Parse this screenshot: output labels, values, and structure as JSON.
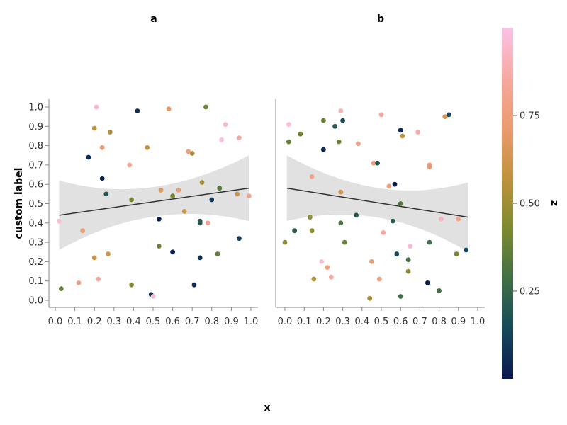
{
  "chart_data": {
    "type": "scatter",
    "xlabel": "x",
    "ylabel": "custom label",
    "colorbar_label": "z",
    "xlim": [
      0,
      1
    ],
    "ylim": [
      0,
      1
    ],
    "x_ticks": [
      "0.0",
      "0.1",
      "0.2",
      "0.3",
      "0.4",
      "0.5",
      "0.6",
      "0.7",
      "0.8",
      "0.9",
      "1.0"
    ],
    "y_ticks": [
      "0.0",
      "0.1",
      "0.2",
      "0.3",
      "0.4",
      "0.5",
      "0.6",
      "0.7",
      "0.8",
      "0.9",
      "1.0"
    ],
    "colorbar_ticks": [
      "0.25",
      "0.50",
      "0.75"
    ],
    "colorbar_range": [
      0,
      1
    ],
    "colormap": [
      "#0a1850",
      "#154a5a",
      "#3f7044",
      "#7d8a2e",
      "#c0923c",
      "#ec9a6e",
      "#f7a8a0",
      "#fbc2e6"
    ],
    "facets": [
      {
        "title": "a",
        "trend": {
          "x": [
            0.02,
            0.99
          ],
          "y": [
            0.44,
            0.58
          ],
          "band_lower": [
            0.26,
            0.41
          ],
          "band_upper": [
            0.62,
            0.75
          ]
        },
        "points": [
          {
            "x": 0.02,
            "y": 0.41,
            "z": 0.97
          },
          {
            "x": 0.03,
            "y": 0.06,
            "z": 0.38
          },
          {
            "x": 0.12,
            "y": 0.09,
            "z": 0.78
          },
          {
            "x": 0.14,
            "y": 0.36,
            "z": 0.74
          },
          {
            "x": 0.17,
            "y": 0.74,
            "z": 0.05
          },
          {
            "x": 0.2,
            "y": 0.22,
            "z": 0.62
          },
          {
            "x": 0.2,
            "y": 0.89,
            "z": 0.56
          },
          {
            "x": 0.21,
            "y": 1.0,
            "z": 0.93
          },
          {
            "x": 0.22,
            "y": 0.11,
            "z": 0.85
          },
          {
            "x": 0.24,
            "y": 0.79,
            "z": 0.72
          },
          {
            "x": 0.24,
            "y": 0.63,
            "z": 0.03
          },
          {
            "x": 0.26,
            "y": 0.55,
            "z": 0.18
          },
          {
            "x": 0.27,
            "y": 0.24,
            "z": 0.62
          },
          {
            "x": 0.28,
            "y": 0.87,
            "z": 0.54
          },
          {
            "x": 0.38,
            "y": 0.7,
            "z": 0.82
          },
          {
            "x": 0.39,
            "y": 0.52,
            "z": 0.4
          },
          {
            "x": 0.39,
            "y": 0.08,
            "z": 0.45
          },
          {
            "x": 0.42,
            "y": 0.98,
            "z": 0.06
          },
          {
            "x": 0.47,
            "y": 0.79,
            "z": 0.6
          },
          {
            "x": 0.49,
            "y": 0.03,
            "z": 0.05
          },
          {
            "x": 0.5,
            "y": 0.02,
            "z": 0.95
          },
          {
            "x": 0.53,
            "y": 0.28,
            "z": 0.4
          },
          {
            "x": 0.53,
            "y": 0.42,
            "z": 0.03
          },
          {
            "x": 0.54,
            "y": 0.57,
            "z": 0.65
          },
          {
            "x": 0.58,
            "y": 0.99,
            "z": 0.7
          },
          {
            "x": 0.6,
            "y": 0.54,
            "z": 0.42
          },
          {
            "x": 0.6,
            "y": 0.25,
            "z": 0.03
          },
          {
            "x": 0.63,
            "y": 0.57,
            "z": 0.72
          },
          {
            "x": 0.66,
            "y": 0.46,
            "z": 0.62
          },
          {
            "x": 0.68,
            "y": 0.77,
            "z": 0.78
          },
          {
            "x": 0.7,
            "y": 0.76,
            "z": 0.52
          },
          {
            "x": 0.71,
            "y": 0.08,
            "z": 0.04
          },
          {
            "x": 0.74,
            "y": 0.41,
            "z": 0.22
          },
          {
            "x": 0.74,
            "y": 0.4,
            "z": 0.18
          },
          {
            "x": 0.74,
            "y": 0.22,
            "z": 0.07
          },
          {
            "x": 0.75,
            "y": 0.61,
            "z": 0.52
          },
          {
            "x": 0.77,
            "y": 1.0,
            "z": 0.38
          },
          {
            "x": 0.78,
            "y": 0.4,
            "z": 0.8
          },
          {
            "x": 0.8,
            "y": 0.52,
            "z": 0.1
          },
          {
            "x": 0.83,
            "y": 0.24,
            "z": 0.35
          },
          {
            "x": 0.84,
            "y": 0.58,
            "z": 0.34
          },
          {
            "x": 0.85,
            "y": 0.83,
            "z": 0.99
          },
          {
            "x": 0.87,
            "y": 0.91,
            "z": 0.94
          },
          {
            "x": 0.93,
            "y": 0.55,
            "z": 0.62
          },
          {
            "x": 0.94,
            "y": 0.32,
            "z": 0.1
          },
          {
            "x": 0.94,
            "y": 0.84,
            "z": 0.87
          },
          {
            "x": 0.99,
            "y": 0.54,
            "z": 0.8
          }
        ]
      },
      {
        "title": "b",
        "trend": {
          "x": [
            0.01,
            0.95
          ],
          "y": [
            0.58,
            0.43
          ],
          "band_lower": [
            0.41,
            0.25
          ],
          "band_upper": [
            0.75,
            0.61
          ]
        },
        "points": [
          {
            "x": 0.0,
            "y": 0.3,
            "z": 0.48
          },
          {
            "x": 0.02,
            "y": 0.91,
            "z": 0.98
          },
          {
            "x": 0.02,
            "y": 0.82,
            "z": 0.38
          },
          {
            "x": 0.05,
            "y": 0.36,
            "z": 0.22
          },
          {
            "x": 0.08,
            "y": 0.86,
            "z": 0.4
          },
          {
            "x": 0.13,
            "y": 0.43,
            "z": 0.45
          },
          {
            "x": 0.14,
            "y": 0.64,
            "z": 0.82
          },
          {
            "x": 0.14,
            "y": 0.36,
            "z": 0.48
          },
          {
            "x": 0.15,
            "y": 0.11,
            "z": 0.55
          },
          {
            "x": 0.19,
            "y": 0.2,
            "z": 0.97
          },
          {
            "x": 0.2,
            "y": 0.93,
            "z": 0.38
          },
          {
            "x": 0.2,
            "y": 0.78,
            "z": 0.04
          },
          {
            "x": 0.22,
            "y": 0.17,
            "z": 0.78
          },
          {
            "x": 0.24,
            "y": 0.12,
            "z": 0.85
          },
          {
            "x": 0.26,
            "y": 0.9,
            "z": 0.2
          },
          {
            "x": 0.28,
            "y": 0.82,
            "z": 0.38
          },
          {
            "x": 0.29,
            "y": 0.98,
            "z": 0.9
          },
          {
            "x": 0.29,
            "y": 0.56,
            "z": 0.62
          },
          {
            "x": 0.29,
            "y": 0.4,
            "z": 0.32
          },
          {
            "x": 0.3,
            "y": 0.93,
            "z": 0.16
          },
          {
            "x": 0.31,
            "y": 0.3,
            "z": 0.38
          },
          {
            "x": 0.37,
            "y": 0.44,
            "z": 0.2
          },
          {
            "x": 0.38,
            "y": 0.81,
            "z": 0.78
          },
          {
            "x": 0.44,
            "y": 0.01,
            "z": 0.52
          },
          {
            "x": 0.45,
            "y": 0.2,
            "z": 0.72
          },
          {
            "x": 0.46,
            "y": 0.71,
            "z": 0.75
          },
          {
            "x": 0.48,
            "y": 0.71,
            "z": 0.18
          },
          {
            "x": 0.49,
            "y": 0.11,
            "z": 0.78
          },
          {
            "x": 0.5,
            "y": 0.96,
            "z": 0.86
          },
          {
            "x": 0.51,
            "y": 0.35,
            "z": 0.85
          },
          {
            "x": 0.54,
            "y": 0.59,
            "z": 0.75
          },
          {
            "x": 0.56,
            "y": 0.41,
            "z": 0.22
          },
          {
            "x": 0.57,
            "y": 0.6,
            "z": 0.02
          },
          {
            "x": 0.58,
            "y": 0.24,
            "z": 0.15
          },
          {
            "x": 0.6,
            "y": 0.5,
            "z": 0.34
          },
          {
            "x": 0.6,
            "y": 0.88,
            "z": 0.03
          },
          {
            "x": 0.6,
            "y": 0.02,
            "z": 0.28
          },
          {
            "x": 0.61,
            "y": 0.85,
            "z": 0.56
          },
          {
            "x": 0.64,
            "y": 0.21,
            "z": 0.28
          },
          {
            "x": 0.64,
            "y": 0.15,
            "z": 0.45
          },
          {
            "x": 0.65,
            "y": 0.28,
            "z": 0.96
          },
          {
            "x": 0.69,
            "y": 0.87,
            "z": 0.87
          },
          {
            "x": 0.74,
            "y": 0.09,
            "z": 0.03
          },
          {
            "x": 0.75,
            "y": 0.7,
            "z": 0.74
          },
          {
            "x": 0.75,
            "y": 0.69,
            "z": 0.72
          },
          {
            "x": 0.75,
            "y": 0.3,
            "z": 0.28
          },
          {
            "x": 0.8,
            "y": 0.05,
            "z": 0.3
          },
          {
            "x": 0.81,
            "y": 0.42,
            "z": 0.92
          },
          {
            "x": 0.83,
            "y": 0.95,
            "z": 0.65
          },
          {
            "x": 0.85,
            "y": 0.96,
            "z": 0.12
          },
          {
            "x": 0.89,
            "y": 0.24,
            "z": 0.42
          },
          {
            "x": 0.9,
            "y": 0.42,
            "z": 0.8
          },
          {
            "x": 0.94,
            "y": 0.26,
            "z": 0.14
          }
        ]
      }
    ]
  }
}
